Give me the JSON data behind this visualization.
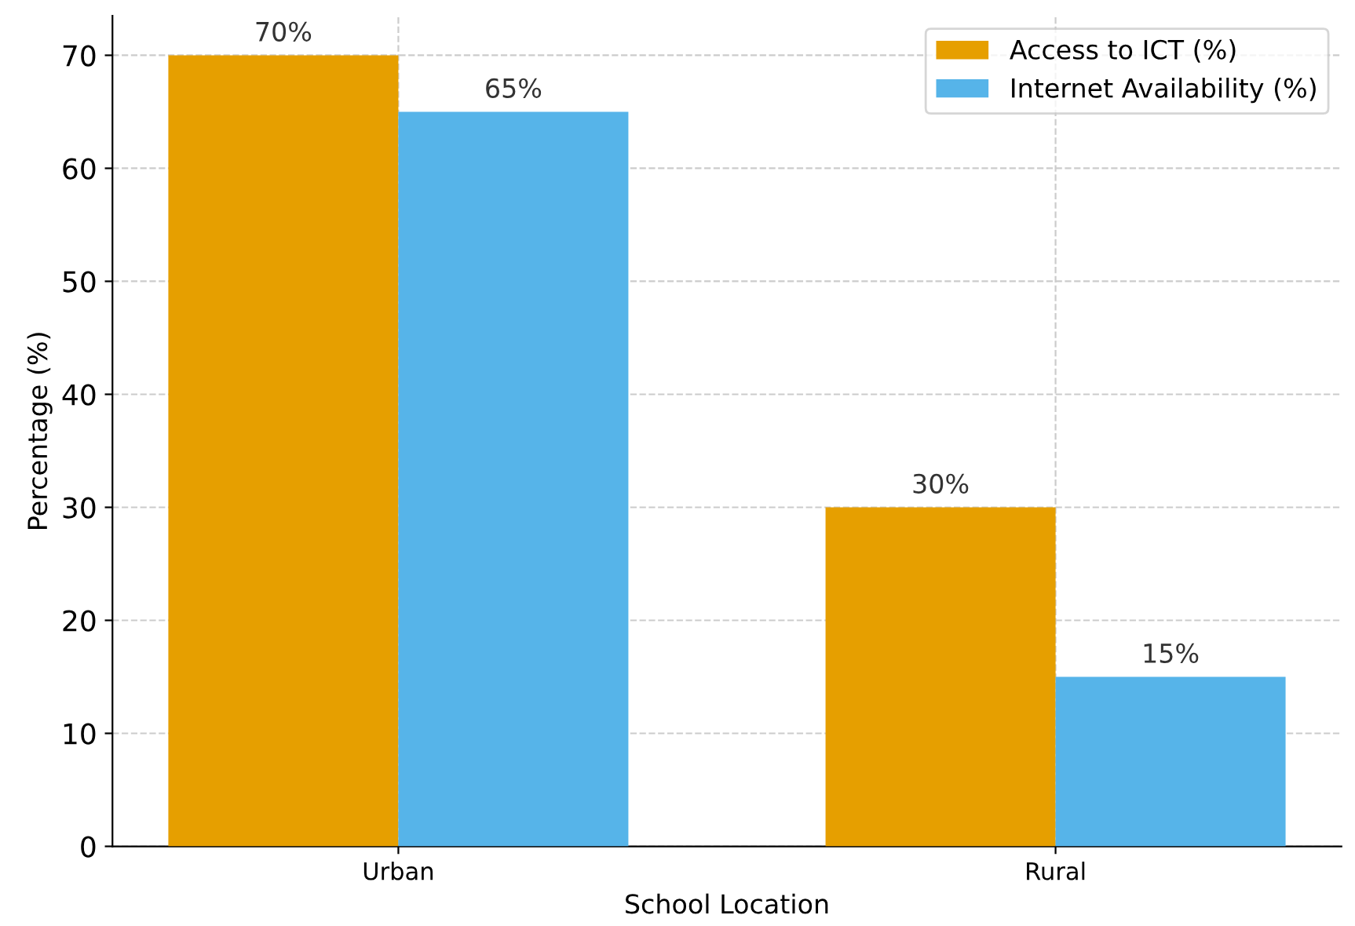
{
  "chart_data": {
    "type": "bar",
    "xlabel": "School Location",
    "ylabel": "Percentage (%)",
    "categories": [
      "Urban",
      "Rural"
    ],
    "series": [
      {
        "name": "Access to ICT (%)",
        "color": "#e69f00",
        "values": [
          70,
          30
        ],
        "value_labels": [
          "70%",
          "30%"
        ]
      },
      {
        "name": "Internet Availability (%)",
        "color": "#56b4e9",
        "values": [
          65,
          15
        ],
        "value_labels": [
          "65%",
          "15%"
        ]
      }
    ],
    "ylim": [
      0,
      73.5
    ],
    "yticks": [
      0,
      10,
      20,
      30,
      40,
      50,
      60,
      70
    ],
    "grid": true,
    "legend": "top right"
  }
}
